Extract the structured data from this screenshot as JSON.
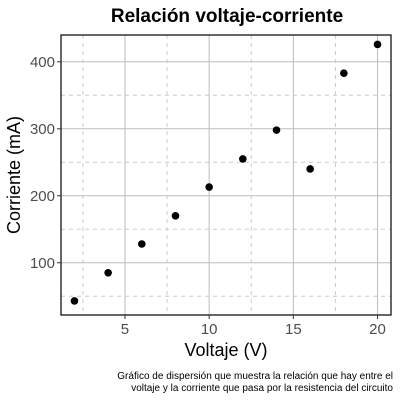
{
  "chart_data": {
    "type": "scatter",
    "title": "Relación voltaje-corriente",
    "xlabel": "Voltaje (V)",
    "ylabel": "Corriente (mA)",
    "caption_lines": [
      "Gráfico de dispersión que muestra la relación que hay entre el",
      "voltaje y la corriente que pasa por la resistencia del circuito"
    ],
    "xlim": [
      1.2,
      20.8
    ],
    "ylim": [
      22,
      440
    ],
    "x_major_ticks": [
      5,
      10,
      15,
      20
    ],
    "x_minor_ticks": [
      2.5,
      7.5,
      12.5,
      17.5
    ],
    "y_major_ticks": [
      100,
      200,
      300,
      400
    ],
    "y_minor_ticks": [
      50,
      150,
      250,
      350
    ],
    "x_tick_labels": [
      "5",
      "10",
      "15",
      "20"
    ],
    "y_tick_labels": [
      "100",
      "200",
      "300",
      "400"
    ],
    "grid": true,
    "point_color": "#000000",
    "x": [
      2,
      4,
      6,
      8,
      10,
      12,
      14,
      16,
      18,
      20
    ],
    "y": [
      43,
      85,
      128,
      170,
      213,
      255,
      298,
      240,
      383,
      426
    ]
  }
}
